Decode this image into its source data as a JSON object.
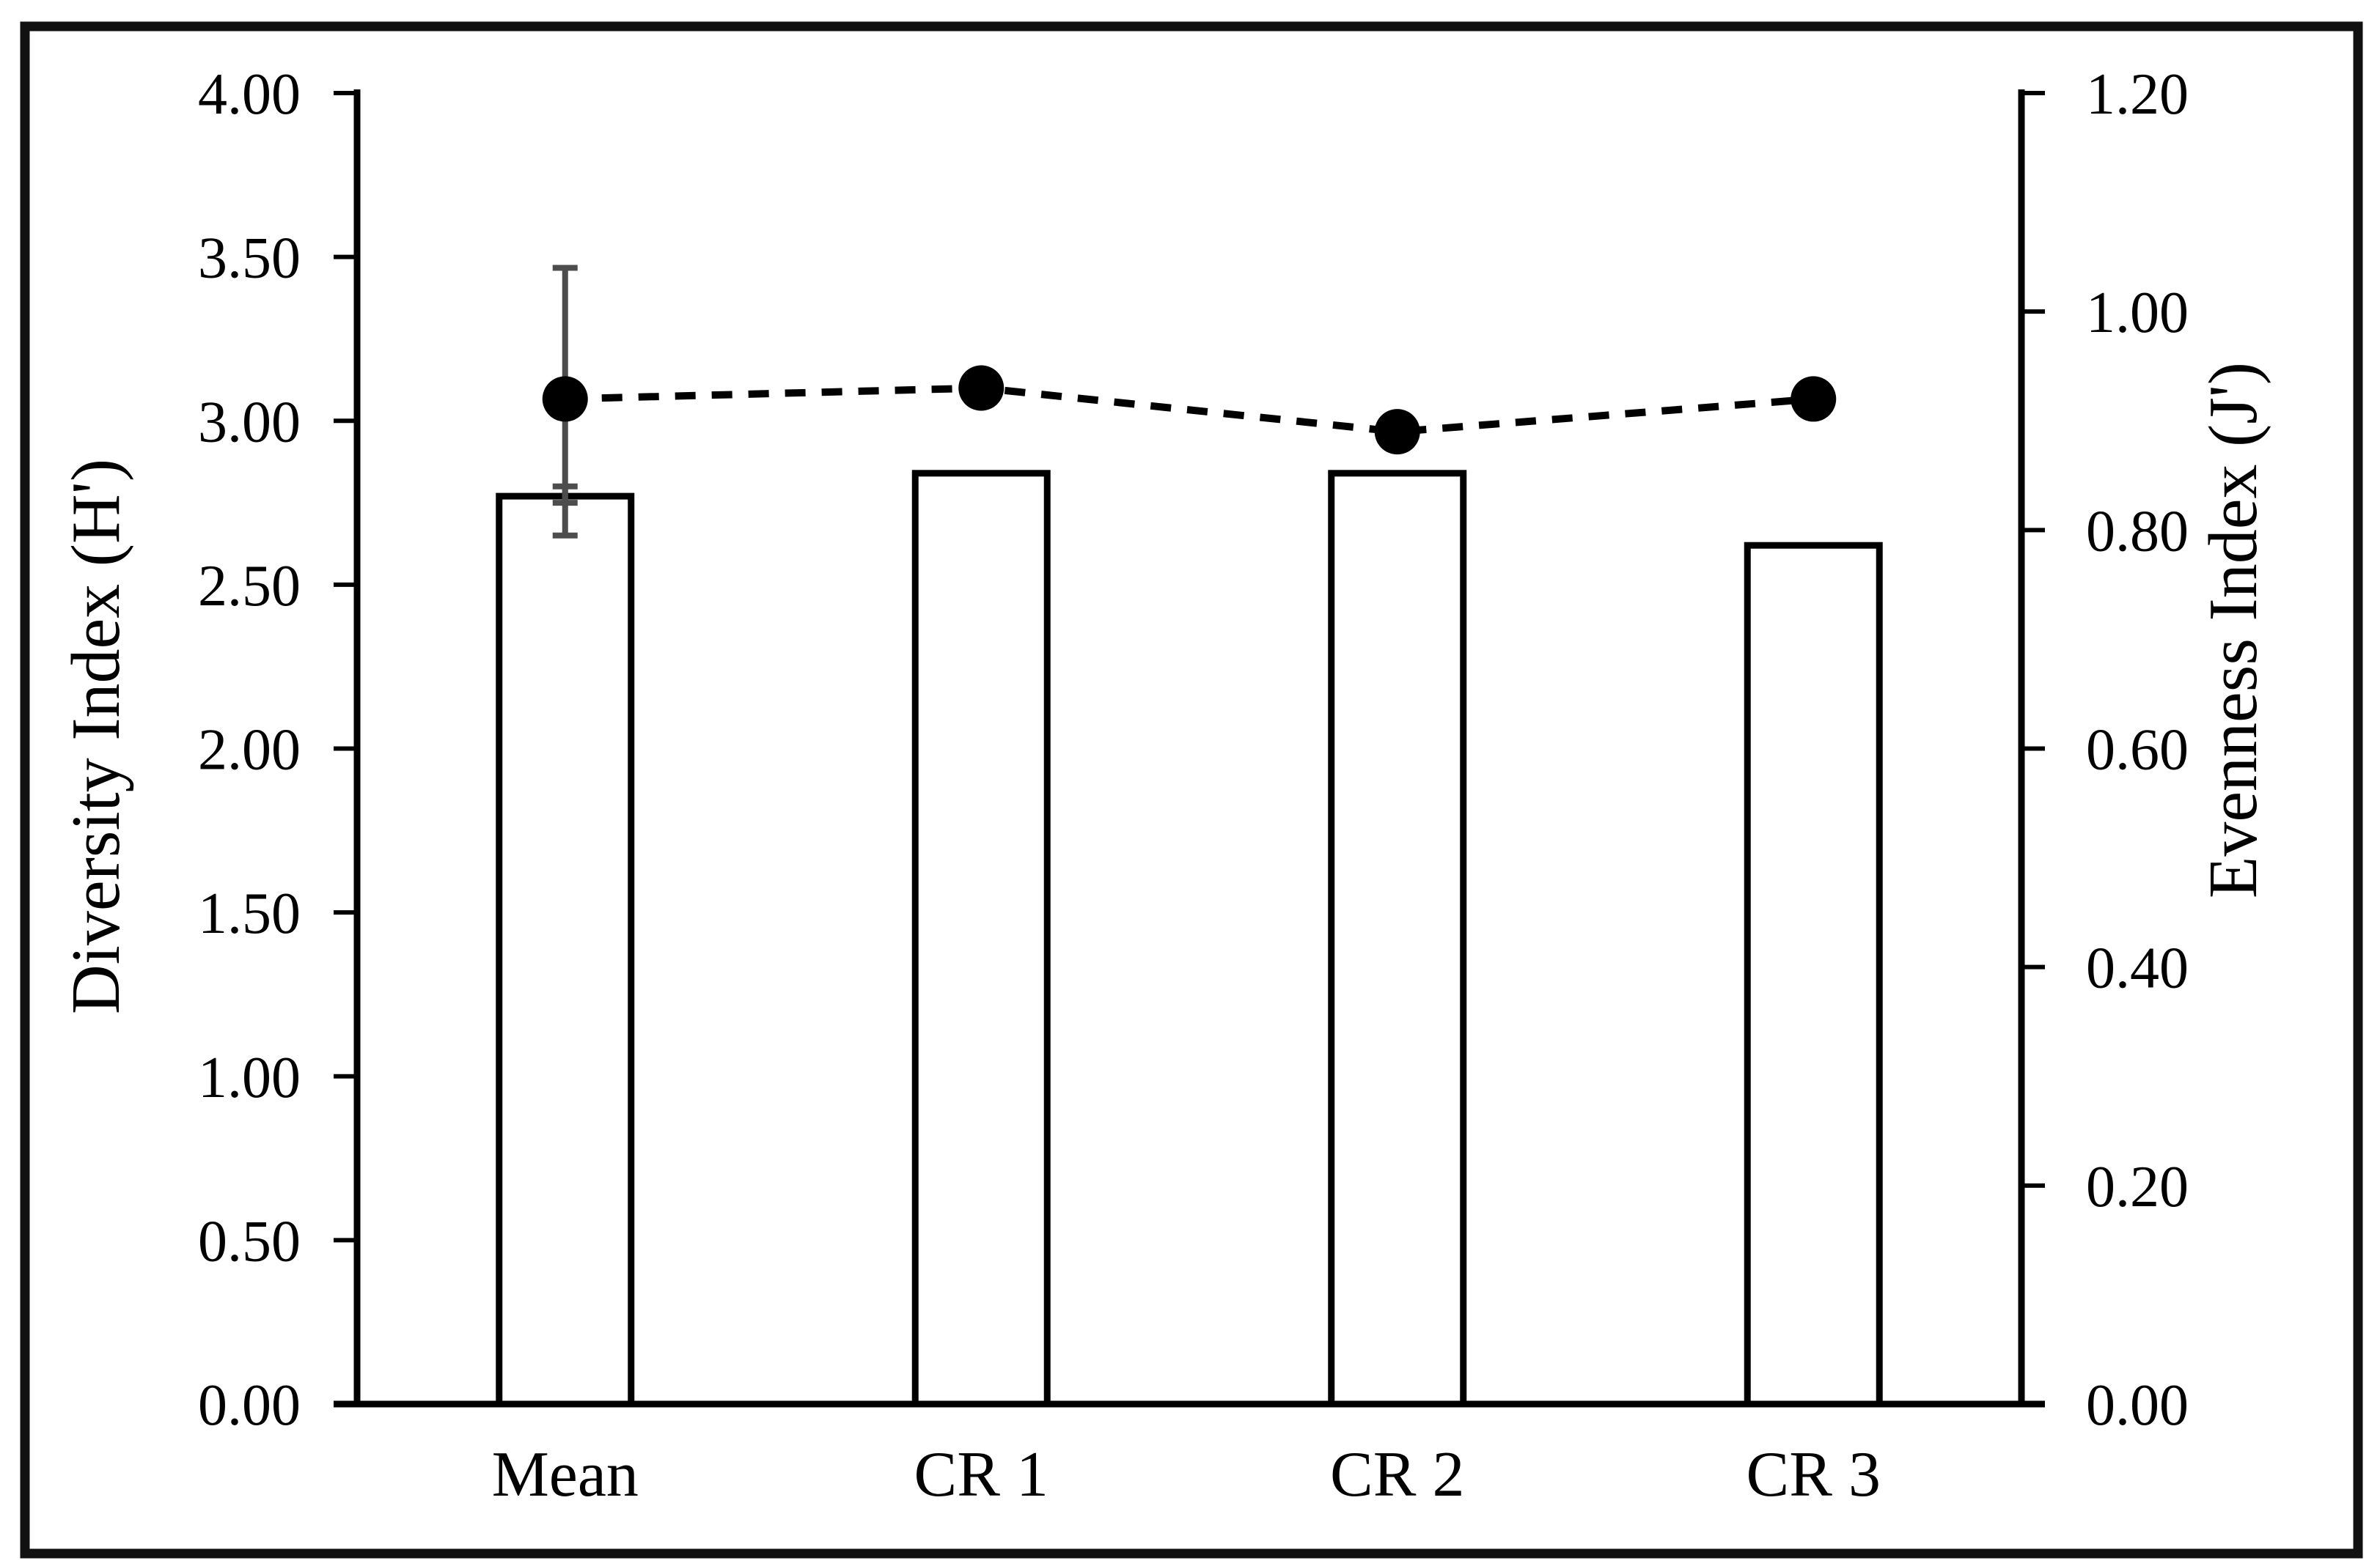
{
  "chart_data": {
    "type": "bar",
    "title": "",
    "categories": [
      "Mean",
      "CR 1",
      "CR 2",
      "CR 3"
    ],
    "series": [
      {
        "name": "Diversity Index (H')",
        "chart_type": "bar",
        "axis": "left",
        "values": [
          2.77,
          2.84,
          2.84,
          2.62
        ],
        "bar_fill": "#ffffff",
        "bar_stroke": "#000000"
      },
      {
        "name": "Evenness Index (J')",
        "chart_type": "line",
        "axis": "right",
        "line_style": "dashed",
        "marker": "filled-circle",
        "color": "#000000",
        "values": [
          0.92,
          0.93,
          0.89,
          0.92
        ]
      }
    ],
    "error_bars": [
      {
        "series_index": 0,
        "category_index": 0,
        "upper": 2.8,
        "lower": 2.75
      },
      {
        "series_index": 1,
        "category_index": 0,
        "upper": 1.04,
        "lower": 0.795
      }
    ],
    "left_axis": {
      "label": "Diversity Index (H')",
      "min": 0,
      "max": 4.0,
      "tick_interval": 0.5,
      "tick_labels": [
        "4.00",
        "3.50",
        "3.00",
        "2.50",
        "2.00",
        "1.50",
        "1.00",
        "0.50",
        "0.00"
      ]
    },
    "right_axis": {
      "label": "Evenness Index (J')",
      "min": 0,
      "max": 1.2,
      "tick_interval": 0.2,
      "tick_labels": [
        "1.20",
        "1.00",
        "0.80",
        "0.60",
        "0.40",
        "0.20",
        "0.00"
      ]
    },
    "grid": false,
    "legend": false,
    "colors": {
      "axis": "#000000",
      "text": "#000000",
      "error_bar": "#4d4d4d",
      "figure_border": "#111111"
    }
  }
}
